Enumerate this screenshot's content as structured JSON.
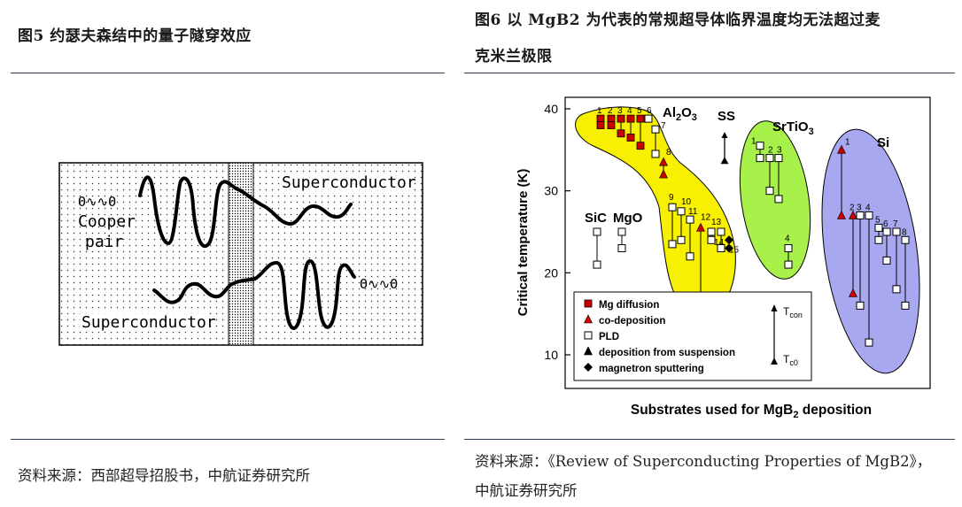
{
  "left": {
    "title": "图5  约瑟夫森结中的量子隧穿效应",
    "source": "资料来源：西部超导招股书，中航证券研究所",
    "diagram": {
      "top_right": "Superconductor",
      "bottom_left": "Superconductor",
      "cooper_1": "Cooper",
      "cooper_2": "pair",
      "pair_glyph": "Θ∿∿Θ"
    }
  },
  "right": {
    "title_line1": "图6  以 MgB2 为代表的常规超导体临界温度均无法超过麦",
    "title_line2": "克米兰极限",
    "source_line1": "资料来源：《Review of Superconducting Properties of MgB2》，",
    "source_line2": "中航证券研究所"
  },
  "chart_data": {
    "type": "scatter",
    "ylabel": "Critical temperature (K)",
    "xlabel": "Substrates used for MgB2 deposition",
    "ylim": [
      7,
      42
    ],
    "yticks": [
      10,
      20,
      30,
      40
    ],
    "group_labels": [
      "Al2O3",
      "SS",
      "SrTiO3",
      "Si",
      "SiC",
      "MgO"
    ],
    "legend": [
      {
        "marker": "filled-square",
        "label": "Mg diffusion"
      },
      {
        "marker": "filled-triangle",
        "label": "co-deposition"
      },
      {
        "marker": "open-square",
        "label": "PLD"
      },
      {
        "marker": "filled-triangle",
        "label": "deposition from suspension"
      },
      {
        "marker": "filled-diamond",
        "label": "magnetron sputtering"
      }
    ],
    "legend_side": [
      "Tcon",
      "Tc0"
    ],
    "colors": {
      "Al2O3": "#f7f000",
      "SrTiO3": "#a8f04a",
      "Si": "#a8a8f0",
      "mg_diffusion": "#cc0000"
    },
    "series": [
      {
        "name": "1",
        "marker": "filled-square",
        "x": 1,
        "tcon": 38.8,
        "tc0": 38.0
      },
      {
        "name": "2",
        "marker": "filled-square",
        "x": 2,
        "tcon": 38.8,
        "tc0": 38.0
      },
      {
        "name": "3",
        "marker": "filled-square",
        "x": 3,
        "tcon": 38.8,
        "tc0": 37.0
      },
      {
        "name": "4",
        "marker": "filled-square",
        "x": 4,
        "tcon": 38.8,
        "tc0": 36.5
      },
      {
        "name": "5",
        "marker": "filled-square",
        "x": 5,
        "tcon": 38.8,
        "tc0": 35.5
      },
      {
        "name": "6",
        "marker": "open-square",
        "x": 6,
        "tcon": 38.8,
        "tc0": null
      },
      {
        "name": "7",
        "marker": "open-square",
        "x": 7,
        "tcon": 37.5,
        "tc0": 34.5
      },
      {
        "name": "8",
        "marker": "filled-triangle",
        "x": 8,
        "tcon": 33.5,
        "tc0": 32.0
      },
      {
        "name": "SS",
        "marker": "filled-triangle",
        "x": "SS",
        "tcon": null,
        "tc0": 33.0
      },
      {
        "name": "9",
        "marker": "open-square",
        "x": 9,
        "tcon": 28.0,
        "tc0": 23.5
      },
      {
        "name": "10",
        "marker": "open-square",
        "x": 10,
        "tcon": 27.5,
        "tc0": 24.0
      },
      {
        "name": "11",
        "marker": "open-square",
        "x": 11,
        "tcon": 26.5,
        "tc0": 22.0
      },
      {
        "name": "12",
        "marker": "filled-triangle",
        "x": 12,
        "tcon": 25.5,
        "tc0": 16.0
      },
      {
        "name": "13",
        "marker": "open-square",
        "x": 13,
        "tcon": 25.0,
        "tc0": 24.0
      },
      {
        "name": "14",
        "marker": "open-square",
        "x": 14,
        "tcon": 25.0,
        "tc0": 23.0
      },
      {
        "name": "15",
        "marker": "filled-diamond",
        "x": 15,
        "tcon": 24.0,
        "tc0": 23.0
      },
      {
        "name": "SiC",
        "marker": "open-square",
        "x": "SiC",
        "tcon": 25.0,
        "tc0": 21.0
      },
      {
        "name": "MgO",
        "marker": "open-square",
        "x": "MgO",
        "tcon": 25.0,
        "tc0": 23.0
      },
      {
        "name": "STO1",
        "marker": "open-square",
        "x": "SrTiO3-1",
        "tcon": 35.5,
        "tc0": 34.0
      },
      {
        "name": "STO2",
        "marker": "open-square",
        "x": "SrTiO3-2",
        "tcon": 34.0,
        "tc0": 30.0
      },
      {
        "name": "STO3",
        "marker": "open-square",
        "x": "SrTiO3-3",
        "tcon": 34.0,
        "tc0": 29.0
      },
      {
        "name": "STO4",
        "marker": "open-square",
        "x": "SrTiO3-4",
        "tcon": 23.0,
        "tc0": 21.0
      },
      {
        "name": "Si1",
        "marker": "filled-triangle",
        "x": "Si-1",
        "tcon": 35.0,
        "tc0": 27.0
      },
      {
        "name": "Si2",
        "marker": "filled-triangle",
        "x": "Si-2",
        "tcon": 27.0,
        "tc0": 17.5
      },
      {
        "name": "Si3",
        "marker": "open-square",
        "x": "Si-3",
        "tcon": 27.0,
        "tc0": 16.0
      },
      {
        "name": "Si4",
        "marker": "open-square",
        "x": "Si-4",
        "tcon": 27.0,
        "tc0": 11.5
      },
      {
        "name": "Si5",
        "marker": "open-square",
        "x": "Si-5",
        "tcon": 25.5,
        "tc0": 24.0
      },
      {
        "name": "Si6",
        "marker": "open-square",
        "x": "Si-6",
        "tcon": 25.0,
        "tc0": 21.5
      },
      {
        "name": "Si7",
        "marker": "open-square",
        "x": "Si-7",
        "tcon": 25.0,
        "tc0": 18.0
      },
      {
        "name": "Si8",
        "marker": "open-square",
        "x": "Si-8",
        "tcon": 24.0,
        "tc0": 16.0
      }
    ]
  }
}
